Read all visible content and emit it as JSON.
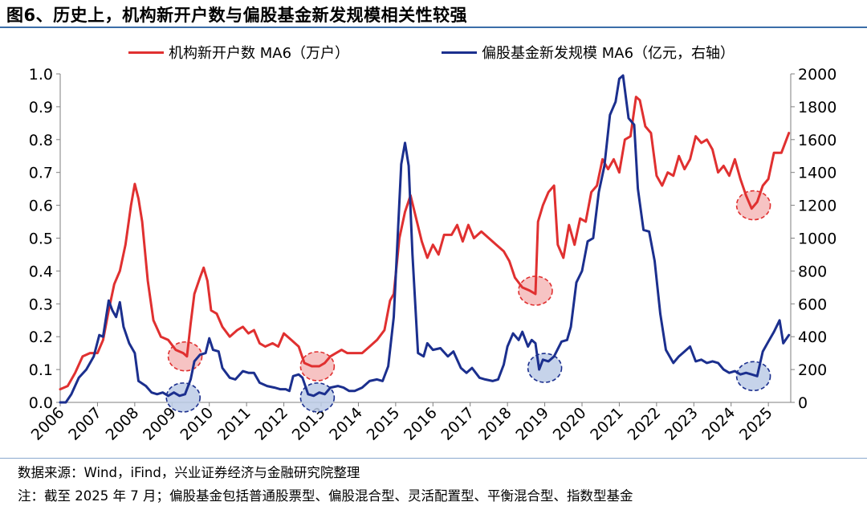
{
  "title": "图6、历史上，机构新开户数与偏股基金新发规模相关性较强",
  "source": "数据来源：Wind，iFind，兴业证券经济与金融研究院整理",
  "note": "注：截至 2025 年 7 月；偏股基金包括普通股票型、偏股混合型、灵活配置型、平衡混合型、指数型基金",
  "colors": {
    "red_series": "#e03030",
    "blue_series": "#1b2f8e",
    "rule": "#3b6ea8",
    "red_circle": "#f5b8b8",
    "blue_circle": "#bccbe6"
  },
  "chart_data": {
    "type": "line",
    "x_range": [
      2006.0,
      2025.6
    ],
    "x_ticks": [
      "2006",
      "2007",
      "2008",
      "2009",
      "2010",
      "2011",
      "2012",
      "2013",
      "2014",
      "2015",
      "2016",
      "2017",
      "2018",
      "2019",
      "2020",
      "2021",
      "2022",
      "2023",
      "2024",
      "2025"
    ],
    "y_left": {
      "range": [
        0,
        1.0
      ],
      "ticks": [
        "0.0",
        "0.1",
        "0.2",
        "0.3",
        "0.4",
        "0.5",
        "0.6",
        "0.7",
        "0.8",
        "0.9",
        "1.0"
      ]
    },
    "y_right": {
      "range": [
        0,
        2000
      ],
      "ticks": [
        "0",
        "200",
        "400",
        "600",
        "800",
        "1000",
        "1200",
        "1400",
        "1600",
        "1800",
        "2000"
      ]
    },
    "legend_position": "top",
    "grid": false,
    "series": [
      {
        "name": "机构新开户数 MA6（万户）",
        "axis": "left",
        "color": "#e03030",
        "points": [
          [
            2006.0,
            0.04
          ],
          [
            2006.2,
            0.05
          ],
          [
            2006.4,
            0.09
          ],
          [
            2006.6,
            0.14
          ],
          [
            2006.8,
            0.15
          ],
          [
            2007.0,
            0.15
          ],
          [
            2007.15,
            0.19
          ],
          [
            2007.3,
            0.28
          ],
          [
            2007.45,
            0.36
          ],
          [
            2007.6,
            0.4
          ],
          [
            2007.75,
            0.48
          ],
          [
            2007.9,
            0.6
          ],
          [
            2008.0,
            0.665
          ],
          [
            2008.1,
            0.62
          ],
          [
            2008.2,
            0.55
          ],
          [
            2008.35,
            0.37
          ],
          [
            2008.5,
            0.25
          ],
          [
            2008.7,
            0.2
          ],
          [
            2008.9,
            0.19
          ],
          [
            2009.1,
            0.16
          ],
          [
            2009.3,
            0.15
          ],
          [
            2009.4,
            0.14
          ],
          [
            2009.5,
            0.24
          ],
          [
            2009.6,
            0.33
          ],
          [
            2009.75,
            0.38
          ],
          [
            2009.85,
            0.41
          ],
          [
            2009.95,
            0.37
          ],
          [
            2010.05,
            0.28
          ],
          [
            2010.2,
            0.27
          ],
          [
            2010.35,
            0.23
          ],
          [
            2010.55,
            0.2
          ],
          [
            2010.75,
            0.22
          ],
          [
            2010.9,
            0.23
          ],
          [
            2011.05,
            0.21
          ],
          [
            2011.2,
            0.22
          ],
          [
            2011.35,
            0.18
          ],
          [
            2011.5,
            0.17
          ],
          [
            2011.7,
            0.18
          ],
          [
            2011.85,
            0.17
          ],
          [
            2012.0,
            0.21
          ],
          [
            2012.2,
            0.19
          ],
          [
            2012.4,
            0.17
          ],
          [
            2012.55,
            0.12
          ],
          [
            2012.75,
            0.11
          ],
          [
            2012.95,
            0.11
          ],
          [
            2013.1,
            0.12
          ],
          [
            2013.25,
            0.14
          ],
          [
            2013.4,
            0.15
          ],
          [
            2013.55,
            0.16
          ],
          [
            2013.7,
            0.15
          ],
          [
            2013.9,
            0.15
          ],
          [
            2014.1,
            0.15
          ],
          [
            2014.3,
            0.17
          ],
          [
            2014.5,
            0.19
          ],
          [
            2014.7,
            0.22
          ],
          [
            2014.85,
            0.31
          ],
          [
            2014.95,
            0.33
          ],
          [
            2015.1,
            0.5
          ],
          [
            2015.25,
            0.58
          ],
          [
            2015.4,
            0.63
          ],
          [
            2015.55,
            0.56
          ],
          [
            2015.7,
            0.49
          ],
          [
            2015.85,
            0.44
          ],
          [
            2016.0,
            0.48
          ],
          [
            2016.15,
            0.45
          ],
          [
            2016.3,
            0.51
          ],
          [
            2016.5,
            0.51
          ],
          [
            2016.65,
            0.54
          ],
          [
            2016.8,
            0.49
          ],
          [
            2016.95,
            0.54
          ],
          [
            2017.1,
            0.5
          ],
          [
            2017.3,
            0.52
          ],
          [
            2017.5,
            0.5
          ],
          [
            2017.7,
            0.48
          ],
          [
            2017.9,
            0.46
          ],
          [
            2018.05,
            0.43
          ],
          [
            2018.2,
            0.38
          ],
          [
            2018.4,
            0.35
          ],
          [
            2018.6,
            0.34
          ],
          [
            2018.75,
            0.33
          ],
          [
            2018.82,
            0.55
          ],
          [
            2018.95,
            0.6
          ],
          [
            2019.1,
            0.64
          ],
          [
            2019.25,
            0.66
          ],
          [
            2019.35,
            0.48
          ],
          [
            2019.5,
            0.44
          ],
          [
            2019.65,
            0.54
          ],
          [
            2019.8,
            0.48
          ],
          [
            2019.95,
            0.56
          ],
          [
            2020.1,
            0.55
          ],
          [
            2020.25,
            0.64
          ],
          [
            2020.4,
            0.66
          ],
          [
            2020.55,
            0.74
          ],
          [
            2020.7,
            0.71
          ],
          [
            2020.85,
            0.74
          ],
          [
            2021.0,
            0.7
          ],
          [
            2021.15,
            0.8
          ],
          [
            2021.3,
            0.81
          ],
          [
            2021.45,
            0.93
          ],
          [
            2021.55,
            0.92
          ],
          [
            2021.7,
            0.84
          ],
          [
            2021.85,
            0.82
          ],
          [
            2022.0,
            0.69
          ],
          [
            2022.15,
            0.66
          ],
          [
            2022.3,
            0.7
          ],
          [
            2022.45,
            0.69
          ],
          [
            2022.6,
            0.75
          ],
          [
            2022.75,
            0.71
          ],
          [
            2022.9,
            0.74
          ],
          [
            2023.05,
            0.81
          ],
          [
            2023.2,
            0.79
          ],
          [
            2023.35,
            0.8
          ],
          [
            2023.5,
            0.77
          ],
          [
            2023.65,
            0.7
          ],
          [
            2023.8,
            0.72
          ],
          [
            2023.95,
            0.69
          ],
          [
            2024.1,
            0.74
          ],
          [
            2024.25,
            0.68
          ],
          [
            2024.4,
            0.63
          ],
          [
            2024.55,
            0.59
          ],
          [
            2024.7,
            0.61
          ],
          [
            2024.85,
            0.66
          ],
          [
            2025.0,
            0.68
          ],
          [
            2025.15,
            0.76
          ],
          [
            2025.35,
            0.76
          ],
          [
            2025.55,
            0.82
          ]
        ]
      },
      {
        "name": "偏股基金新发规模 MA6（亿元，右轴）",
        "axis": "right",
        "color": "#1b2f8e",
        "points": [
          [
            2006.0,
            0
          ],
          [
            2006.15,
            0
          ],
          [
            2006.3,
            50
          ],
          [
            2006.5,
            150
          ],
          [
            2006.7,
            200
          ],
          [
            2006.9,
            280
          ],
          [
            2007.05,
            410
          ],
          [
            2007.15,
            400
          ],
          [
            2007.3,
            620
          ],
          [
            2007.4,
            560
          ],
          [
            2007.5,
            520
          ],
          [
            2007.6,
            610
          ],
          [
            2007.7,
            460
          ],
          [
            2007.85,
            360
          ],
          [
            2008.0,
            300
          ],
          [
            2008.1,
            130
          ],
          [
            2008.3,
            100
          ],
          [
            2008.45,
            60
          ],
          [
            2008.6,
            50
          ],
          [
            2008.75,
            60
          ],
          [
            2008.9,
            40
          ],
          [
            2009.05,
            60
          ],
          [
            2009.2,
            40
          ],
          [
            2009.35,
            50
          ],
          [
            2009.5,
            140
          ],
          [
            2009.6,
            250
          ],
          [
            2009.75,
            290
          ],
          [
            2009.9,
            300
          ],
          [
            2010.0,
            390
          ],
          [
            2010.1,
            320
          ],
          [
            2010.25,
            310
          ],
          [
            2010.35,
            210
          ],
          [
            2010.55,
            150
          ],
          [
            2010.7,
            140
          ],
          [
            2010.9,
            190
          ],
          [
            2011.05,
            180
          ],
          [
            2011.2,
            180
          ],
          [
            2011.35,
            120
          ],
          [
            2011.55,
            100
          ],
          [
            2011.75,
            90
          ],
          [
            2011.9,
            80
          ],
          [
            2012.05,
            80
          ],
          [
            2012.15,
            70
          ],
          [
            2012.25,
            160
          ],
          [
            2012.4,
            170
          ],
          [
            2012.5,
            150
          ],
          [
            2012.65,
            50
          ],
          [
            2012.8,
            40
          ],
          [
            2012.95,
            60
          ],
          [
            2013.1,
            50
          ],
          [
            2013.25,
            90
          ],
          [
            2013.45,
            100
          ],
          [
            2013.6,
            90
          ],
          [
            2013.75,
            70
          ],
          [
            2013.9,
            70
          ],
          [
            2014.1,
            90
          ],
          [
            2014.3,
            130
          ],
          [
            2014.5,
            140
          ],
          [
            2014.65,
            130
          ],
          [
            2014.8,
            220
          ],
          [
            2014.95,
            520
          ],
          [
            2015.15,
            1450
          ],
          [
            2015.25,
            1580
          ],
          [
            2015.35,
            1440
          ],
          [
            2015.45,
            900
          ],
          [
            2015.6,
            300
          ],
          [
            2015.75,
            280
          ],
          [
            2015.85,
            360
          ],
          [
            2016.0,
            320
          ],
          [
            2016.2,
            330
          ],
          [
            2016.4,
            280
          ],
          [
            2016.55,
            310
          ],
          [
            2016.75,
            210
          ],
          [
            2016.9,
            180
          ],
          [
            2017.05,
            210
          ],
          [
            2017.25,
            150
          ],
          [
            2017.4,
            140
          ],
          [
            2017.6,
            130
          ],
          [
            2017.75,
            140
          ],
          [
            2017.9,
            230
          ],
          [
            2018.0,
            340
          ],
          [
            2018.15,
            420
          ],
          [
            2018.3,
            380
          ],
          [
            2018.4,
            430
          ],
          [
            2018.55,
            340
          ],
          [
            2018.65,
            380
          ],
          [
            2018.75,
            360
          ],
          [
            2018.85,
            200
          ],
          [
            2018.95,
            260
          ],
          [
            2019.1,
            250
          ],
          [
            2019.25,
            280
          ],
          [
            2019.45,
            370
          ],
          [
            2019.6,
            380
          ],
          [
            2019.7,
            460
          ],
          [
            2019.85,
            730
          ],
          [
            2020.0,
            800
          ],
          [
            2020.15,
            980
          ],
          [
            2020.3,
            1000
          ],
          [
            2020.45,
            1280
          ],
          [
            2020.6,
            1440
          ],
          [
            2020.75,
            1750
          ],
          [
            2020.9,
            1830
          ],
          [
            2021.0,
            1970
          ],
          [
            2021.1,
            1990
          ],
          [
            2021.25,
            1730
          ],
          [
            2021.4,
            1690
          ],
          [
            2021.5,
            1300
          ],
          [
            2021.65,
            1050
          ],
          [
            2021.8,
            1040
          ],
          [
            2021.95,
            860
          ],
          [
            2022.1,
            540
          ],
          [
            2022.25,
            320
          ],
          [
            2022.45,
            240
          ],
          [
            2022.6,
            280
          ],
          [
            2022.75,
            310
          ],
          [
            2022.9,
            340
          ],
          [
            2023.05,
            250
          ],
          [
            2023.2,
            260
          ],
          [
            2023.35,
            240
          ],
          [
            2023.5,
            250
          ],
          [
            2023.65,
            240
          ],
          [
            2023.8,
            200
          ],
          [
            2023.95,
            180
          ],
          [
            2024.1,
            190
          ],
          [
            2024.25,
            170
          ],
          [
            2024.4,
            180
          ],
          [
            2024.55,
            170
          ],
          [
            2024.7,
            160
          ],
          [
            2024.85,
            310
          ],
          [
            2025.0,
            370
          ],
          [
            2025.15,
            430
          ],
          [
            2025.3,
            500
          ],
          [
            2025.4,
            360
          ],
          [
            2025.55,
            410
          ]
        ]
      }
    ],
    "highlights": [
      {
        "x": 2009.35,
        "y_left": 0.14,
        "color": "red"
      },
      {
        "x": 2012.9,
        "y_left": 0.11,
        "color": "red"
      },
      {
        "x": 2018.75,
        "y_left": 0.34,
        "color": "red"
      },
      {
        "x": 2024.6,
        "y_left": 0.6,
        "color": "red"
      },
      {
        "x": 2009.3,
        "y_right": 30,
        "color": "blue"
      },
      {
        "x": 2012.9,
        "y_right": 30,
        "color": "blue"
      },
      {
        "x": 2019.0,
        "y_right": 210,
        "color": "blue"
      },
      {
        "x": 2024.6,
        "y_right": 160,
        "color": "blue"
      }
    ]
  }
}
